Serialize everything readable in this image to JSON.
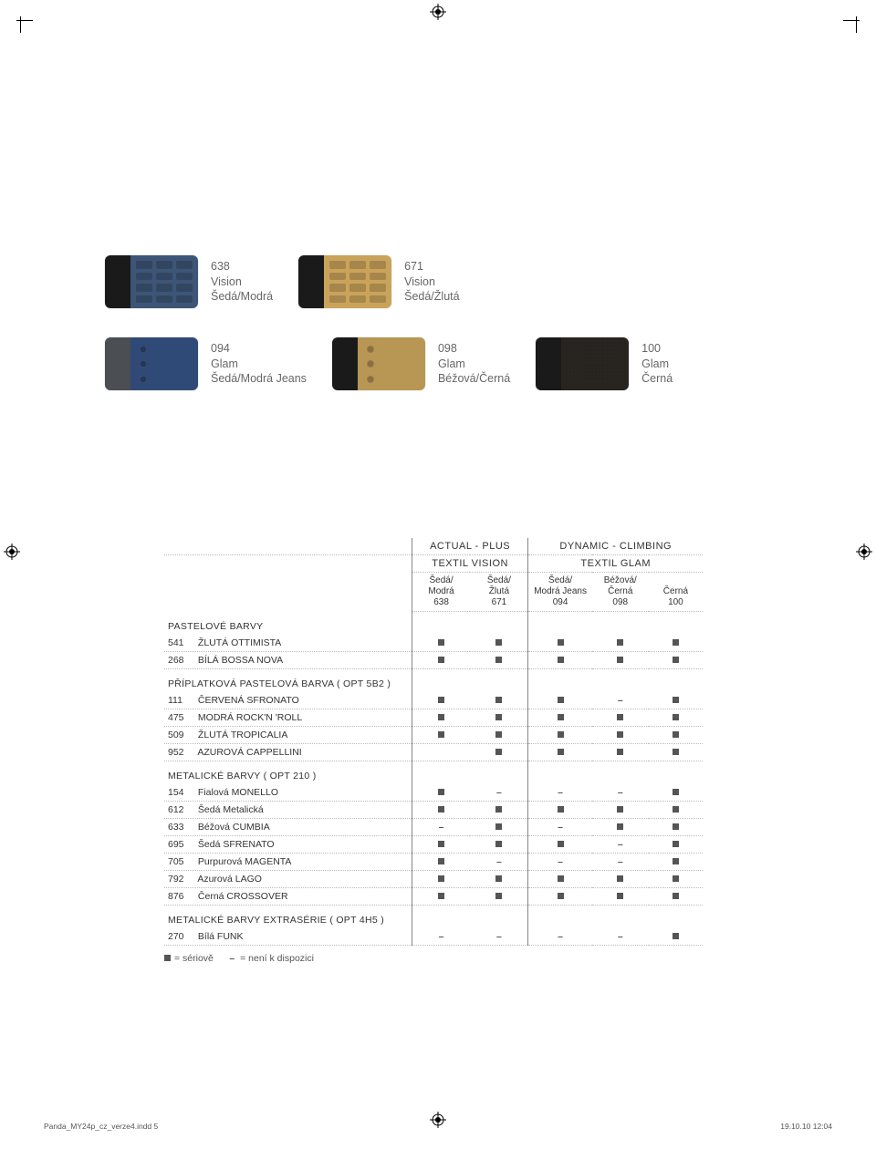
{
  "swatches_row1": [
    {
      "code": "638",
      "name": "Vision",
      "desc": "Šedá/Modrá",
      "leftColor": "#1a1a1a",
      "rightColor": "#3d5576",
      "pattern": "dots"
    },
    {
      "code": "671",
      "name": "Vision",
      "desc": "Šedá/Žlutá",
      "leftColor": "#1a1a1a",
      "rightColor": "#caa35a",
      "pattern": "dots"
    }
  ],
  "swatches_row2": [
    {
      "code": "094",
      "name": "Glam",
      "desc": "Šedá/Modrá Jeans",
      "leftColor": "#4b4f53",
      "rightColor": "#304a77",
      "pattern": "eyelets"
    },
    {
      "code": "098",
      "name": "Glam",
      "desc": "Béžová/Černá",
      "leftColor": "#1a1a1a",
      "rightColor": "#b89654",
      "pattern": "eyelets"
    },
    {
      "code": "100",
      "name": "Glam",
      "desc": "Černá",
      "leftColor": "#1a1a1a",
      "rightColor": "#28241f",
      "pattern": "texture"
    }
  ],
  "table": {
    "group1": {
      "title": "ACTUAL - PLUS",
      "subhead": "TEXTIL VISION",
      "cols": [
        {
          "l1": "Šedá/",
          "l2": "Modrá",
          "l3": "638"
        },
        {
          "l1": "Šedá/",
          "l2": "Žlutá",
          "l3": "671"
        }
      ]
    },
    "group2": {
      "title": "DYNAMIC - CLIMBING",
      "subhead": "TEXTIL GLAM",
      "cols": [
        {
          "l1": "Šedá/",
          "l2": "Modrá Jeans",
          "l3": "094"
        },
        {
          "l1": "Béžová/",
          "l2": "Černá",
          "l3": "098"
        },
        {
          "l1": "",
          "l2": "Černá",
          "l3": "100"
        }
      ]
    },
    "sections": [
      {
        "title": "PASTELOVÉ BARVY",
        "rows": [
          {
            "code": "541",
            "name": "ŽLUTÁ OTTIMISTA",
            "v": [
              "s",
              "s",
              "s",
              "s",
              "s"
            ]
          },
          {
            "code": "268",
            "name": "BÍLÁ BOSSA NOVA",
            "v": [
              "s",
              "s",
              "s",
              "s",
              "s"
            ]
          }
        ]
      },
      {
        "title": "PŘÍPLATKOVÁ PASTELOVÁ BARVA ( OPT 5B2 )",
        "rows": [
          {
            "code": "111",
            "name": "ČERVENÁ SFRONATO",
            "v": [
              "s",
              "s",
              "s",
              "-",
              "s"
            ]
          },
          {
            "code": "475",
            "name": "MODRÁ ROCK'N 'ROLL",
            "v": [
              "s",
              "s",
              "s",
              "s",
              "s"
            ]
          },
          {
            "code": "509",
            "name": "ŽLUTÁ TROPICALIA",
            "v": [
              "s",
              "s",
              "s",
              "s",
              "s"
            ]
          },
          {
            "code": "952",
            "name": "AZUROVÁ CAPPELLINI",
            "v": [
              "",
              "s",
              "s",
              "s",
              "s"
            ]
          }
        ]
      },
      {
        "title": "METALICKÉ BARVY ( OPT 210 )",
        "rows": [
          {
            "code": "154",
            "name": "Fialová MONELLO",
            "v": [
              "s",
              "-",
              "-",
              "-",
              "s"
            ]
          },
          {
            "code": "612",
            "name": "Šedá Metalická",
            "v": [
              "s",
              "s",
              "s",
              "s",
              "s"
            ]
          },
          {
            "code": "633",
            "name": "Béžová CUMBIA",
            "v": [
              "-",
              "s",
              "-",
              "s",
              "s"
            ]
          },
          {
            "code": "695",
            "name": "Šedá SFRENATO",
            "v": [
              "s",
              "s",
              "s",
              "-",
              "s"
            ]
          },
          {
            "code": "705",
            "name": "Purpurová MAGENTA",
            "v": [
              "s",
              "-",
              "-",
              "-",
              "s"
            ]
          },
          {
            "code": "792",
            "name": "Azurová LAGO",
            "v": [
              "s",
              "s",
              "s",
              "s",
              "s"
            ]
          },
          {
            "code": "876",
            "name": "Černá CROSSOVER",
            "v": [
              "s",
              "s",
              "s",
              "s",
              "s"
            ]
          }
        ]
      },
      {
        "title": "METALICKÉ BARVY EXTRASÉRIE ( OPT 4H5 )",
        "rows": [
          {
            "code": "270",
            "name": "Bílá FUNK",
            "v": [
              "-",
              "-",
              "-",
              "-",
              "s"
            ]
          }
        ]
      }
    ],
    "legend_std": "= sériově",
    "legend_na": "= není k dispozici"
  },
  "footer": {
    "file": "Panda_MY24p_cz_verze4.indd   5",
    "datetime": "19.10.10   12:04"
  },
  "colors": {
    "text": "#555555",
    "heading": "#333333",
    "dotBorder": "#bbbbbb",
    "solidBorder": "#888888"
  }
}
